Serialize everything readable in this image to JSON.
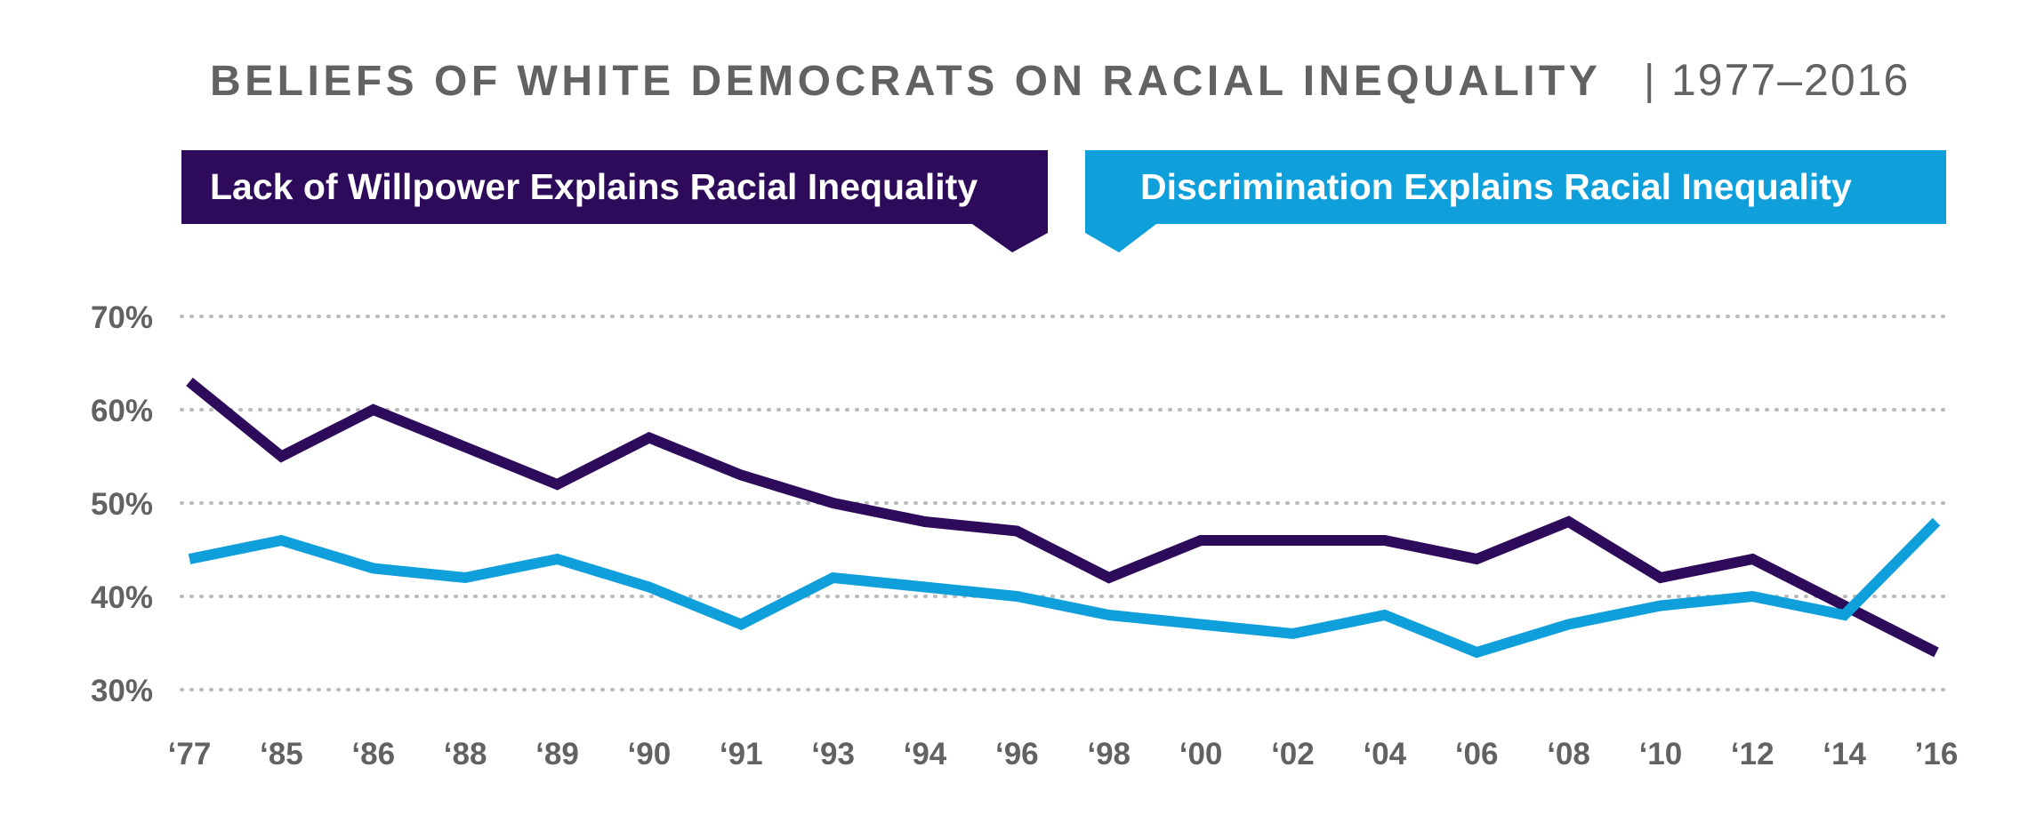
{
  "chart_data": {
    "type": "line",
    "title": "BELIEFS OF WHITE DEMOCRATS ON RACIAL INEQUALITY",
    "title_separator": "|",
    "subtitle": "1977–2016",
    "xlabel": "",
    "ylabel": "",
    "categories": [
      "‘77",
      "‘85",
      "‘86",
      "‘88",
      "‘89",
      "‘90",
      "‘91",
      "‘93",
      "‘94",
      "‘96",
      "‘98",
      "‘00",
      "‘02",
      "‘04",
      "‘06",
      "‘08",
      "‘10",
      "‘12",
      "‘14",
      "’16"
    ],
    "y_ticks": [
      30,
      40,
      50,
      60,
      70
    ],
    "y_tick_labels": [
      "30%",
      "40%",
      "50%",
      "60%",
      "70%"
    ],
    "ylim": [
      30,
      70
    ],
    "grid": true,
    "legend_position": "top",
    "series": [
      {
        "name": "Lack of Willpower Explains Racial Inequality",
        "color": "#2e0a5a",
        "values": [
          63,
          55,
          60,
          56,
          52,
          57,
          53,
          50,
          48,
          47,
          42,
          46,
          46,
          46,
          44,
          48,
          42,
          44,
          39,
          34
        ]
      },
      {
        "name": "Discrimination Explains Racial Inequality",
        "color": "#0f9fdb",
        "values": [
          44,
          46,
          43,
          42,
          44,
          41,
          37,
          42,
          41,
          40,
          38,
          37,
          36,
          38,
          34,
          37,
          39,
          40,
          38,
          48
        ]
      }
    ]
  }
}
